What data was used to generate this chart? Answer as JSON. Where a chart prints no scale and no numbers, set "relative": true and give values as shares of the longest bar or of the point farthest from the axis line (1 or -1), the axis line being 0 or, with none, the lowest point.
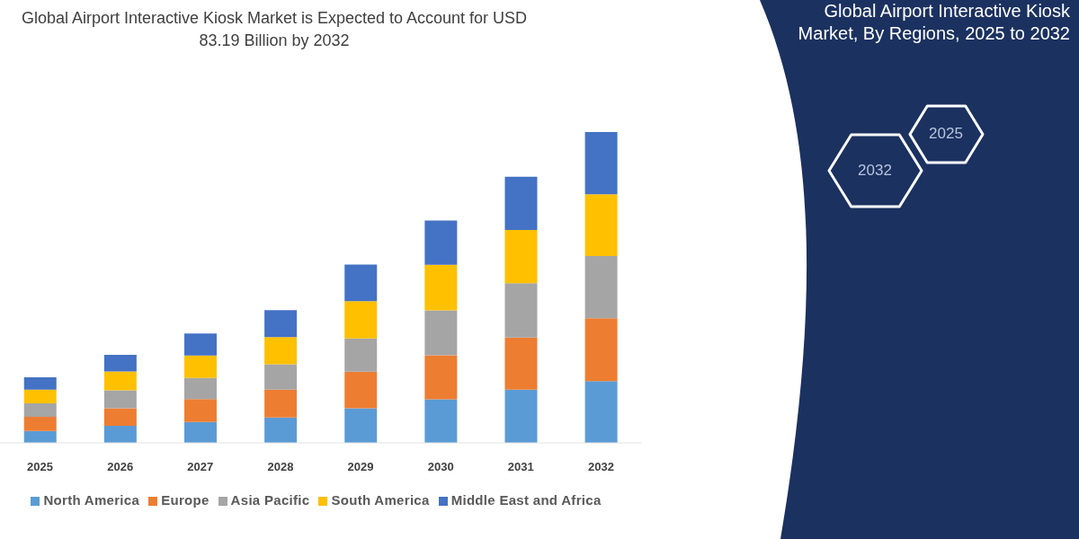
{
  "chart_data": {
    "type": "bar",
    "title": "Global Airport Interactive Kiosk Market is Expected to Account for USD 83.19 Billion by 2032",
    "subtitle": "Global Airport Interactive Kiosk Market, By Regions, 2025 to 2032",
    "annotations": [
      "2025",
      "2032"
    ],
    "categories": [
      "2025",
      "2026",
      "2027",
      "2028",
      "2029",
      "2030",
      "2031",
      "2032"
    ],
    "stacked": true,
    "relative": true,
    "legend": "bottom",
    "series": [
      {
        "name": "North America",
        "color": "#5b9bd5",
        "values": [
          0.038,
          0.055,
          0.067,
          0.082,
          0.111,
          0.14,
          0.171,
          0.199
        ]
      },
      {
        "name": "Europe",
        "color": "#ed7d31",
        "values": [
          0.046,
          0.056,
          0.074,
          0.089,
          0.118,
          0.142,
          0.168,
          0.202
        ]
      },
      {
        "name": "Asia Pacific",
        "color": "#a5a5a5",
        "values": [
          0.043,
          0.058,
          0.068,
          0.082,
          0.107,
          0.144,
          0.175,
          0.2
        ]
      },
      {
        "name": "South America",
        "color": "#ffc000",
        "values": [
          0.044,
          0.061,
          0.072,
          0.087,
          0.12,
          0.147,
          0.171,
          0.199
        ]
      },
      {
        "name": "Middle East and Africa",
        "color": "#4472c4",
        "values": [
          0.04,
          0.053,
          0.071,
          0.087,
          0.118,
          0.142,
          0.171,
          0.2
        ]
      }
    ]
  }
}
